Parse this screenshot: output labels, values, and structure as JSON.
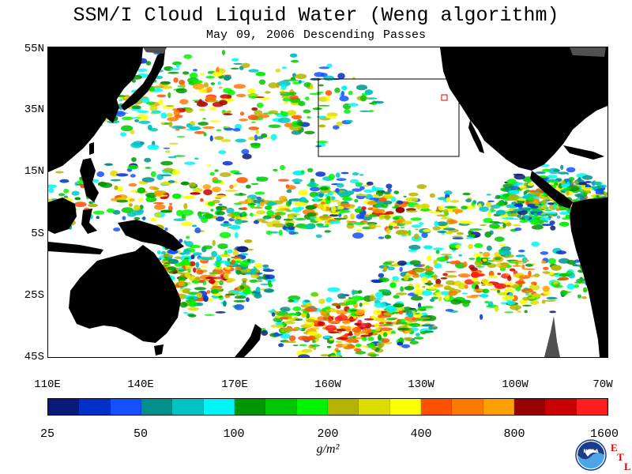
{
  "title": "SSM/I Cloud Liquid Water (Weng algorithm)",
  "subtitle": "May 09, 2006  Descending Passes",
  "map": {
    "lat_labels": [
      "55N",
      "35N",
      "15N",
      "5S",
      "25S",
      "45S"
    ],
    "lon_labels": [
      "110E",
      "140E",
      "170E",
      "160W",
      "130W",
      "100W",
      "70W"
    ],
    "land_color": "#000000",
    "missing_color": "#505050",
    "ocean_clear_color": "#ffffff",
    "box_color": "#000000",
    "marker_color": "#e00000"
  },
  "legend": {
    "colors": [
      "#0a1a78",
      "#0030c8",
      "#1450ff",
      "#00908c",
      "#00c4c4",
      "#00f6f6",
      "#009600",
      "#00c800",
      "#00f400",
      "#b4b400",
      "#dcdc00",
      "#ffff00",
      "#ff5000",
      "#ff7800",
      "#ffa000",
      "#960000",
      "#c80000",
      "#ff1e1e"
    ],
    "tick_labels": [
      "25",
      "50",
      "100",
      "200",
      "400",
      "800",
      "1600"
    ],
    "units": "g/m²"
  },
  "logo": {
    "noaa_text": "NOAA",
    "etl_letters": [
      "E",
      "T",
      "L"
    ]
  }
}
